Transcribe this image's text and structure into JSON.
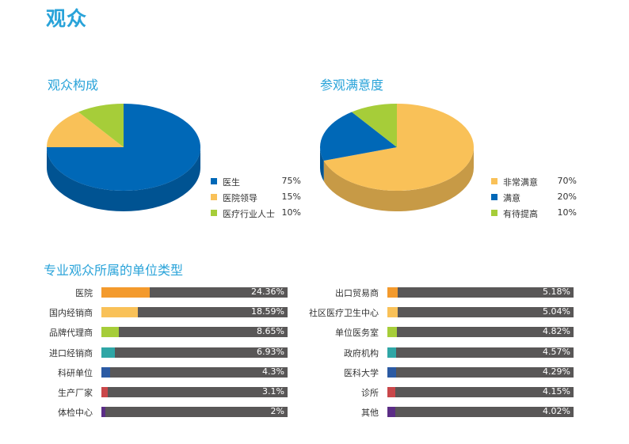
{
  "page_title": "观众",
  "chart_data": [
    {
      "type": "pie",
      "title": "观众构成",
      "legend_position": "right",
      "slices": [
        {
          "name": "医生",
          "value": 75,
          "label": "75%",
          "color": "#0068b7"
        },
        {
          "name": "医院领导",
          "value": 15,
          "label": "15%",
          "color": "#f9c158"
        },
        {
          "name": "医疗行业人士",
          "value": 10,
          "label": "10%",
          "color": "#a6cd39"
        }
      ]
    },
    {
      "type": "pie",
      "title": "参观满意度",
      "legend_position": "right",
      "slices": [
        {
          "name": "非常满意",
          "value": 70,
          "label": "70%",
          "color": "#f9c158"
        },
        {
          "name": "满意",
          "value": 20,
          "label": "20%",
          "color": "#0068b7"
        },
        {
          "name": "有待提高",
          "value": 10,
          "label": "10%",
          "color": "#a6cd39"
        }
      ]
    },
    {
      "type": "bar",
      "title": "专业观众所属的单位类型",
      "orientation": "horizontal",
      "xlim": [
        0,
        100
      ],
      "track_color": "#595757",
      "columns": [
        [
          {
            "name": "医院",
            "value": 24.36,
            "label": "24.36%",
            "color": "#f39a2d"
          },
          {
            "name": "国内经销商",
            "value": 18.59,
            "label": "18.59%",
            "color": "#f9c158"
          },
          {
            "name": "品牌代理商",
            "value": 8.65,
            "label": "8.65%",
            "color": "#a6cd39"
          },
          {
            "name": "进口经销商",
            "value": 6.93,
            "label": "6.93%",
            "color": "#2fa6a6"
          },
          {
            "name": "科研单位",
            "value": 4.3,
            "label": "4.3%",
            "color": "#2b5aa3"
          },
          {
            "name": "生产厂家",
            "value": 3.1,
            "label": "3.1%",
            "color": "#c9474a"
          },
          {
            "name": "体检中心",
            "value": 2,
            "label": "2%",
            "color": "#5b2d86"
          }
        ],
        [
          {
            "name": "出口贸易商",
            "value": 5.18,
            "label": "5.18%",
            "color": "#f39a2d"
          },
          {
            "name": "社区医疗卫生中心",
            "value": 5.04,
            "label": "5.04%",
            "color": "#f9c158"
          },
          {
            "name": "单位医务室",
            "value": 4.82,
            "label": "4.82%",
            "color": "#a6cd39"
          },
          {
            "name": "政府机构",
            "value": 4.57,
            "label": "4.57%",
            "color": "#2fa6a6"
          },
          {
            "name": "医科大学",
            "value": 4.29,
            "label": "4.29%",
            "color": "#2b5aa3"
          },
          {
            "name": "诊所",
            "value": 4.15,
            "label": "4.15%",
            "color": "#c9474a"
          },
          {
            "name": "其他",
            "value": 4.02,
            "label": "4.02%",
            "color": "#5b2d86"
          }
        ]
      ]
    }
  ]
}
